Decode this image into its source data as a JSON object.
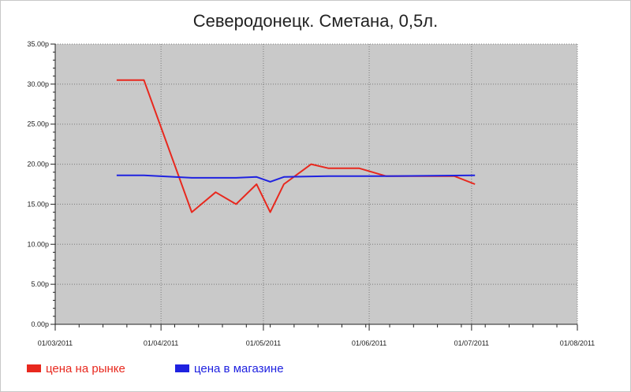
{
  "chart_data": {
    "type": "line",
    "title": "Северодонецк. Сметана, 0,5л.",
    "xlabel": "",
    "ylabel": "",
    "ylim": [
      0,
      35
    ],
    "xlim": [
      "2011-03-01",
      "2011-08-01"
    ],
    "y_ticks": [
      "0.00р",
      "5.00р",
      "10.00р",
      "15.00р",
      "20.00р",
      "25.00р",
      "30.00р",
      "35.00р"
    ],
    "x_ticks": [
      "01/03/2011",
      "01/04/2011",
      "01/05/2011",
      "01/06/2011",
      "01/07/2011",
      "01/08/2011"
    ],
    "grid": true,
    "legend_position": "bottom-left",
    "series": [
      {
        "name": "цена на рынке",
        "color": "#e8281e",
        "points": [
          [
            "2011-03-19",
            30.5
          ],
          [
            "2011-03-27",
            30.5
          ],
          [
            "2011-04-10",
            14.0
          ],
          [
            "2011-04-17",
            16.5
          ],
          [
            "2011-04-23",
            15.0
          ],
          [
            "2011-04-29",
            17.5
          ],
          [
            "2011-05-03",
            14.0
          ],
          [
            "2011-05-07",
            17.5
          ],
          [
            "2011-05-15",
            20.0
          ],
          [
            "2011-05-20",
            19.5
          ],
          [
            "2011-05-29",
            19.5
          ],
          [
            "2011-06-06",
            18.5
          ],
          [
            "2011-06-13",
            18.5
          ],
          [
            "2011-06-26",
            18.5
          ],
          [
            "2011-07-02",
            17.5
          ]
        ]
      },
      {
        "name": "цена в магазине",
        "color": "#1f22e0",
        "points": [
          [
            "2011-03-19",
            18.6
          ],
          [
            "2011-03-27",
            18.6
          ],
          [
            "2011-04-10",
            18.3
          ],
          [
            "2011-04-23",
            18.3
          ],
          [
            "2011-04-29",
            18.4
          ],
          [
            "2011-05-03",
            17.8
          ],
          [
            "2011-05-07",
            18.4
          ],
          [
            "2011-05-20",
            18.5
          ],
          [
            "2011-06-06",
            18.5
          ],
          [
            "2011-07-02",
            18.6
          ]
        ]
      }
    ]
  },
  "colors": {
    "plot_background": "#c9c9c9",
    "grid": "#7a7a7a",
    "axis": "#222222"
  }
}
